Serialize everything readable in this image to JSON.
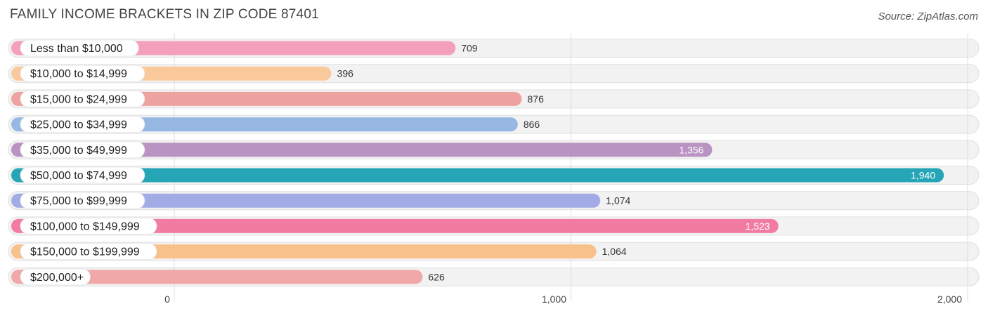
{
  "chart_data": {
    "type": "bar",
    "orientation": "horizontal",
    "title": "FAMILY INCOME BRACKETS IN ZIP CODE 87401",
    "source": "Source: ZipAtlas.com",
    "xlim": [
      0,
      2000
    ],
    "xticks": [
      0,
      1000,
      2000
    ],
    "xtick_labels": [
      "0",
      "1,000",
      "2,000"
    ],
    "categories": [
      "Less than $10,000",
      "$10,000 to $14,999",
      "$15,000 to $24,999",
      "$25,000 to $34,999",
      "$35,000 to $49,999",
      "$50,000 to $74,999",
      "$75,000 to $99,999",
      "$100,000 to $149,999",
      "$150,000 to $199,999",
      "$200,000+"
    ],
    "values": [
      709,
      396,
      876,
      866,
      1356,
      1940,
      1074,
      1523,
      1064,
      626
    ],
    "value_labels": [
      "709",
      "396",
      "876",
      "866",
      "1,356",
      "1,940",
      "1,074",
      "1,523",
      "1,064",
      "626"
    ],
    "colors": [
      "#f49fbc",
      "#f9c99c",
      "#eea3a0",
      "#97b8e3",
      "#b993c2",
      "#25a5b5",
      "#a3abe6",
      "#f27ba2",
      "#f8c08a",
      "#f0a8a8"
    ],
    "grid": true,
    "legend": "none"
  }
}
